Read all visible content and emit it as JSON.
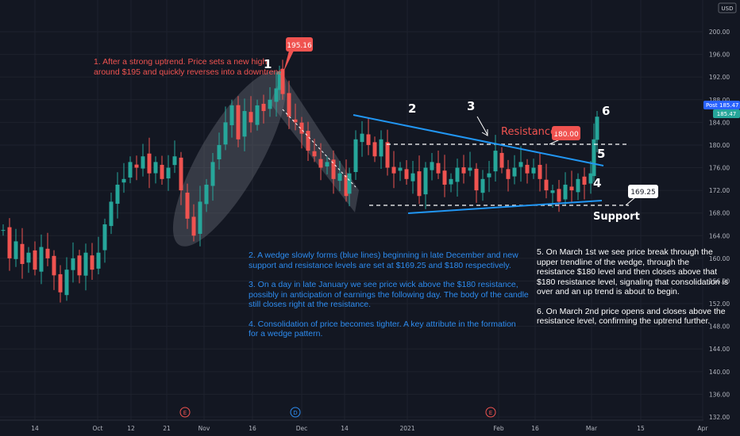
{
  "currency": "USD",
  "chart_data": {
    "type": "candlestick",
    "y_axis": {
      "ticks": [
        "200.00",
        "196.00",
        "192.00",
        "188.00",
        "184.00",
        "180.00",
        "176.00",
        "172.00",
        "168.00",
        "164.00",
        "160.00",
        "156.00",
        "152.00",
        "148.00",
        "144.00",
        "140.00",
        "136.00",
        "132.00"
      ],
      "ylim": [
        131,
        203
      ]
    },
    "x_axis": {
      "ticks": [
        {
          "label": "14",
          "x": 44
        },
        {
          "label": "Oct",
          "x": 123
        },
        {
          "label": "12",
          "x": 165
        },
        {
          "label": "21",
          "x": 210
        },
        {
          "label": "Nov",
          "x": 257
        },
        {
          "label": "16",
          "x": 318
        },
        {
          "label": "Dec",
          "x": 380
        },
        {
          "label": "14",
          "x": 434
        },
        {
          "label": "2021",
          "x": 513
        },
        {
          "label": "Feb",
          "x": 628
        },
        {
          "label": "16",
          "x": 674
        },
        {
          "label": "Mar",
          "x": 745
        },
        {
          "label": "15",
          "x": 807
        },
        {
          "label": "Apr",
          "x": 885
        }
      ]
    },
    "levels": {
      "resistance": 180.0,
      "support": 169.25,
      "high": 195.16,
      "post": 185.47,
      "last": 185.47
    }
  },
  "labels": {
    "high": "195.16",
    "resistance_price": "180.00",
    "support_price": "169.25",
    "resistance": "Resistance",
    "support": "Support",
    "post_tag": "Post",
    "post_price": "185.47",
    "last_price": "185.47",
    "n1": "1",
    "n2": "2",
    "n3": "3",
    "n4": "4",
    "n5": "5",
    "n6": "6"
  },
  "events": [
    {
      "letter": "E",
      "color": "#f05350",
      "x": 233
    },
    {
      "letter": "D",
      "color": "#2d8cf0",
      "x": 372
    },
    {
      "letter": "E",
      "color": "#f05350",
      "x": 618
    }
  ],
  "annotations": {
    "a1": [
      "1. After a strong uptrend. Price sets a new high",
      "around $195 and quickly reverses into a downtrend."
    ],
    "a2": [
      "2. A wedge slowly forms (blue lines) beginning in late December and new",
      "support and resistance levels are set at $169.25 and $180 respectively."
    ],
    "a3": [
      "3. On a day in late January we see price wick above the $180 resistance,",
      "possibly in anticipation of earnings the following day. The body of the candle",
      "still closes right at the resistance."
    ],
    "a4": [
      "4. Consolidation of price becomes tighter. A key attribute in the formation",
      "for a wedge pattern."
    ],
    "a5": [
      "5. On March 1st we see price break through the",
      "upper trendline of the wedge, through the",
      "resistance $180 level and then closes above that",
      "$180 resistance level, signaling that consolidation is",
      "over and an up trend is about to begin."
    ],
    "a6": [
      "6. On March 2nd price opens and closes above the",
      "resistance level, confirming the uptrend further."
    ]
  },
  "colors": {
    "up": "#26a69a",
    "down": "#ef5350",
    "trend": "#2196f3",
    "annotation_red": "#f05350",
    "annotation_blue": "#2d8cf0"
  }
}
